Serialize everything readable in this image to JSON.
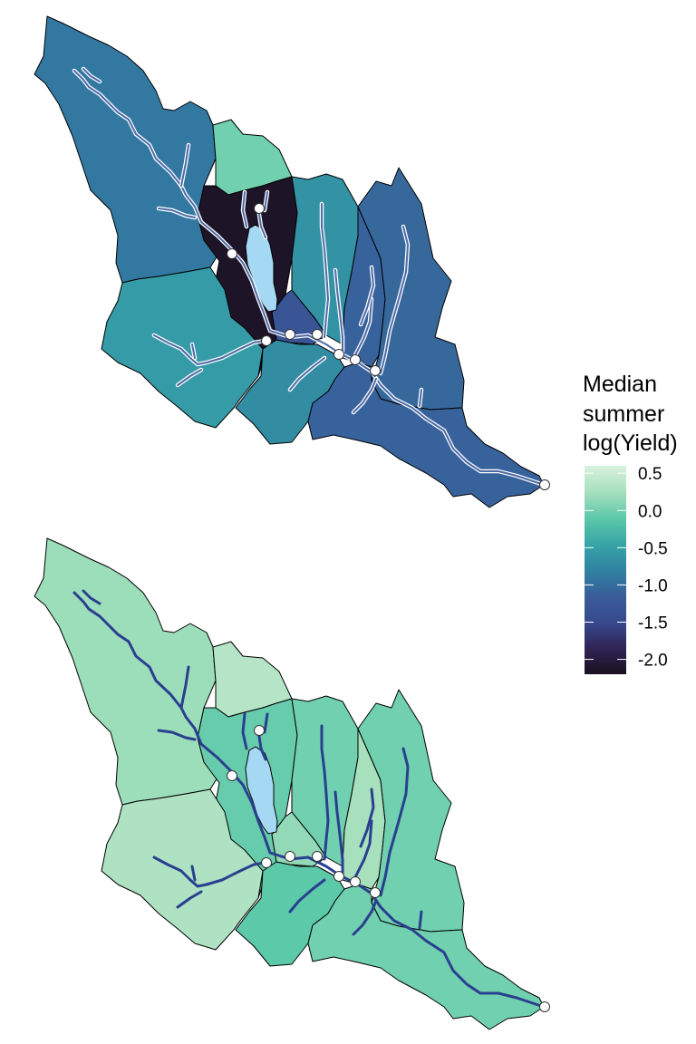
{
  "legend": {
    "title_lines": [
      "Median",
      "summer",
      "log(Yield)"
    ],
    "ticks": [
      "0.5",
      "0.0",
      "-0.5",
      "-1.0",
      "-1.5",
      "-2.0"
    ],
    "scale": [
      "#d8f1dd",
      "#a7e0bd",
      "#5cc9a9",
      "#38a5a7",
      "#2f83a2",
      "#3a5d9a",
      "#384a8e",
      "#2f2455",
      "#1a1120"
    ]
  },
  "colors": {
    "boundary": "#000000",
    "lake": "#a5d8f3",
    "stream_top": "#4e6aa6",
    "stream_top_halo": "#ffffff",
    "stream_bottom": "#2a3f8f",
    "point_fill": "#ffffff",
    "point_stroke": "#333333"
  },
  "panels": [
    {
      "id": "top",
      "subbasins": [
        {
          "name": "nw-upper",
          "value": -0.9
        },
        {
          "name": "north-notch",
          "value": 0.0
        },
        {
          "name": "lake-center",
          "value": -2.15
        },
        {
          "name": "north-center",
          "value": -0.65
        },
        {
          "name": "southwest",
          "value": -0.55
        },
        {
          "name": "south-center",
          "value": -0.7
        },
        {
          "name": "small-east-of-lake",
          "value": -1.3
        },
        {
          "name": "east-strip",
          "value": -1.1
        },
        {
          "name": "east",
          "value": -1.05
        },
        {
          "name": "southeast",
          "value": -1.1
        }
      ]
    },
    {
      "id": "bottom",
      "subbasins": [
        {
          "name": "nw-upper",
          "value": 0.2
        },
        {
          "name": "north-notch",
          "value": 0.35
        },
        {
          "name": "lake-center",
          "value": -0.05
        },
        {
          "name": "north-center",
          "value": 0.0
        },
        {
          "name": "southwest",
          "value": 0.3
        },
        {
          "name": "south-center",
          "value": -0.1
        },
        {
          "name": "small-east-of-lake",
          "value": 0.15
        },
        {
          "name": "east-strip",
          "value": 0.25
        },
        {
          "name": "east",
          "value": 0.0
        },
        {
          "name": "southeast",
          "value": 0.0
        }
      ]
    }
  ]
}
